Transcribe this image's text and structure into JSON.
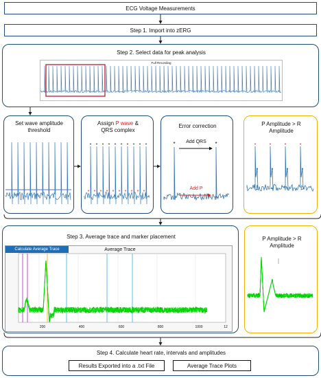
{
  "flow": {
    "ecg_title": "ECG Voltage Measurements",
    "step1": "Step 1. Import into zERG",
    "step2": "Step 2. Select data for peak analysis",
    "full_recording": "Full Recording",
    "threshold": "Set wave amplitude threshold",
    "assign_pre": "Assign ",
    "assign_p": "P wave",
    "assign_post": " &",
    "assign_line2": "QRS complex",
    "error_correction": "Error correction",
    "add_qrs": "Add QRS",
    "add_p": "Add P",
    "p_amp_1": "P Amplitude > R Amplitude",
    "step3": "Step 3. Average trace and marker placement",
    "calc_button": "Calculate Average Trace",
    "avg_title": "Average Trace",
    "x_ticks": [
      "200",
      "400",
      "600",
      "800",
      "1000"
    ],
    "x_tick_end": "12",
    "p_amp_2": "P Amplitude > R Amplitude",
    "step4": "Step 4. Calculate heart rate, intervals and amplitudes",
    "results": "Results Exported into a .txt File",
    "avg_plots": "Average Trace Plots"
  },
  "colors": {
    "border": "#1f4e79",
    "accent_gold": "#f0b400",
    "trace_blue": "#2e75b6",
    "trace_green": "#00dd00",
    "marker_red": "#e02020",
    "selection_red": "#b02030",
    "vline_purple": "#b040c0",
    "vline_cyan": "#4fb8e8"
  }
}
